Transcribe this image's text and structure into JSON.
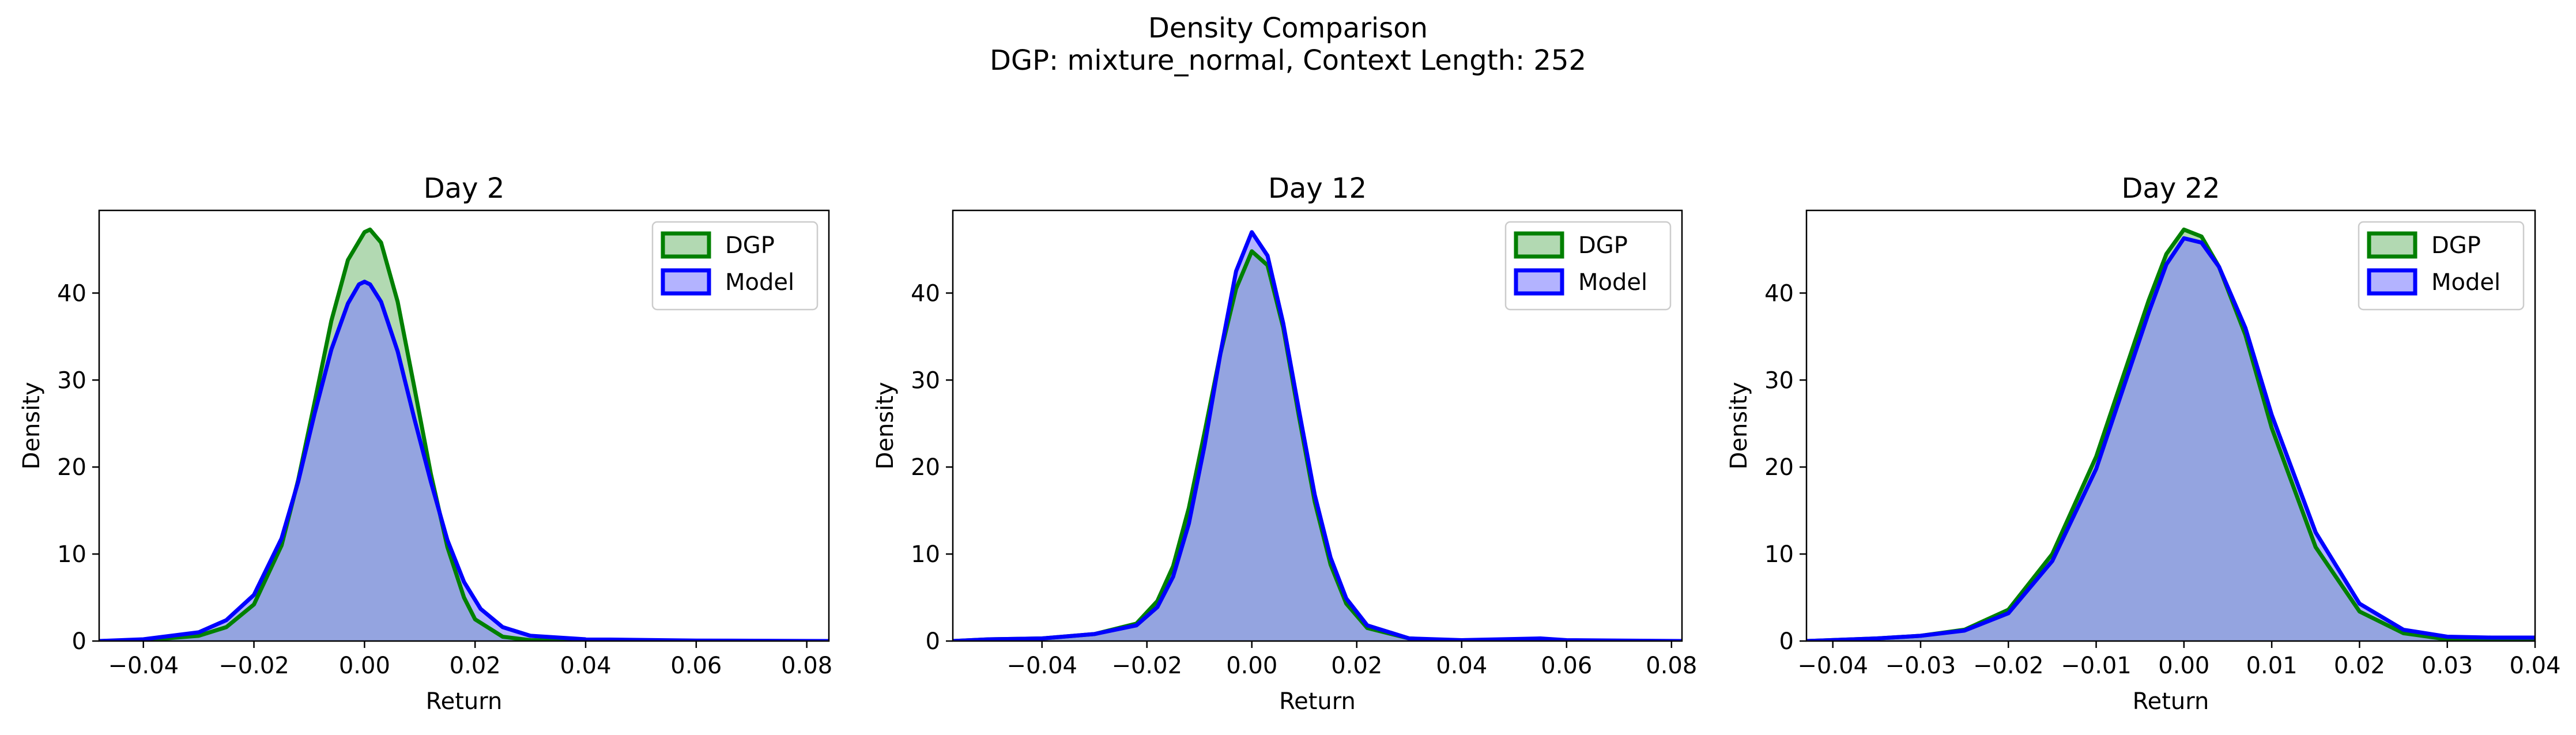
{
  "figure": {
    "title": "Density Comparison",
    "subtitle": "DGP: mixture_normal, Context Length: 252"
  },
  "colors": {
    "dgp_line": "#008000",
    "dgp_fill": "#7fbf7f",
    "model_line": "#0000ff",
    "model_fill": "#8080ff",
    "overlap_fill": "#7e97c8"
  },
  "chart_data": [
    {
      "type": "area",
      "title": "Day 2",
      "xlabel": "Return",
      "ylabel": "Density",
      "xlim": [
        -0.048,
        0.084
      ],
      "ylim": [
        0,
        49.5
      ],
      "xticks": [
        -0.04,
        -0.02,
        0.0,
        0.02,
        0.04,
        0.06,
        0.08
      ],
      "xtick_labels": [
        "−0.04",
        "−0.02",
        "0.00",
        "0.02",
        "0.04",
        "0.06",
        "0.08"
      ],
      "yticks": [
        0,
        10,
        20,
        30,
        40
      ],
      "ytick_labels": [
        "0",
        "10",
        "20",
        "30",
        "40"
      ],
      "legend": {
        "position": "top-right",
        "entries": [
          "DGP",
          "Model"
        ]
      },
      "grid": false,
      "series": [
        {
          "name": "DGP",
          "x": [
            -0.048,
            -0.04,
            -0.03,
            -0.025,
            -0.02,
            -0.015,
            -0.012,
            -0.009,
            -0.006,
            -0.003,
            0.0,
            0.001,
            0.003,
            0.006,
            0.009,
            0.012,
            0.015,
            0.018,
            0.02,
            0.025,
            0.03,
            0.04,
            0.06,
            0.084
          ],
          "y": [
            0,
            0.1,
            0.6,
            1.6,
            4.2,
            11.0,
            18.5,
            27.5,
            36.8,
            43.8,
            47.0,
            47.3,
            45.8,
            39.0,
            29.2,
            19.2,
            10.8,
            5.0,
            2.5,
            0.5,
            0.1,
            0,
            0,
            0
          ]
        },
        {
          "name": "Model",
          "x": [
            -0.048,
            -0.04,
            -0.03,
            -0.025,
            -0.02,
            -0.015,
            -0.012,
            -0.009,
            -0.006,
            -0.003,
            -0.001,
            0.0,
            0.001,
            0.003,
            0.006,
            0.009,
            0.012,
            0.015,
            0.018,
            0.021,
            0.025,
            0.03,
            0.04,
            0.06,
            0.084
          ],
          "y": [
            0,
            0.2,
            1.0,
            2.4,
            5.3,
            11.8,
            18.3,
            26.2,
            33.5,
            38.8,
            41.0,
            41.3,
            41.0,
            39.0,
            33.3,
            25.6,
            18.3,
            11.6,
            6.8,
            3.7,
            1.6,
            0.6,
            0.2,
            0.05,
            0
          ]
        }
      ]
    },
    {
      "type": "area",
      "title": "Day 12",
      "xlabel": "Return",
      "ylabel": "Density",
      "xlim": [
        -0.057,
        0.082
      ],
      "ylim": [
        0,
        49.5
      ],
      "xticks": [
        -0.04,
        -0.02,
        0.0,
        0.02,
        0.04,
        0.06,
        0.08
      ],
      "xtick_labels": [
        "−0.04",
        "−0.02",
        "0.00",
        "0.02",
        "0.04",
        "0.06",
        "0.08"
      ],
      "yticks": [
        0,
        10,
        20,
        30,
        40
      ],
      "ytick_labels": [
        "0",
        "10",
        "20",
        "30",
        "40"
      ],
      "legend": {
        "position": "top-right",
        "entries": [
          "DGP",
          "Model"
        ]
      },
      "grid": false,
      "series": [
        {
          "name": "DGP",
          "x": [
            -0.057,
            -0.05,
            -0.04,
            -0.03,
            -0.022,
            -0.018,
            -0.015,
            -0.012,
            -0.009,
            -0.006,
            -0.003,
            0.0,
            0.003,
            0.006,
            0.009,
            0.012,
            0.015,
            0.018,
            0.022,
            0.03,
            0.04,
            0.06,
            0.082
          ],
          "y": [
            0,
            0.2,
            0.3,
            0.8,
            2.0,
            4.6,
            8.6,
            15.3,
            24.0,
            33.0,
            40.5,
            44.8,
            43.2,
            36.0,
            25.8,
            16.0,
            8.8,
            4.3,
            1.5,
            0.3,
            0,
            0,
            0
          ]
        },
        {
          "name": "Model",
          "x": [
            -0.057,
            -0.05,
            -0.04,
            -0.03,
            -0.022,
            -0.018,
            -0.015,
            -0.012,
            -0.009,
            -0.006,
            -0.003,
            0.0,
            0.003,
            0.006,
            0.009,
            0.012,
            0.015,
            0.018,
            0.022,
            0.03,
            0.04,
            0.055,
            0.06,
            0.082
          ],
          "y": [
            0,
            0.2,
            0.3,
            0.8,
            1.8,
            3.9,
            7.4,
            13.5,
            22.5,
            33.0,
            42.5,
            47.0,
            44.3,
            36.5,
            26.5,
            16.8,
            9.6,
            4.9,
            1.8,
            0.3,
            0.1,
            0.3,
            0.1,
            0
          ]
        }
      ]
    },
    {
      "type": "area",
      "title": "Day 22",
      "xlabel": "Return",
      "ylabel": "Density",
      "xlim": [
        -0.043,
        0.04
      ],
      "ylim": [
        0,
        49.5
      ],
      "xticks": [
        -0.04,
        -0.03,
        -0.02,
        -0.01,
        0.0,
        0.01,
        0.02,
        0.03,
        0.04
      ],
      "xtick_labels": [
        "−0.04",
        "−0.03",
        "−0.02",
        "−0.01",
        "0.00",
        "0.01",
        "0.02",
        "0.03",
        "0.04"
      ],
      "yticks": [
        0,
        10,
        20,
        30,
        40
      ],
      "ytick_labels": [
        "0",
        "10",
        "20",
        "30",
        "40"
      ],
      "legend": {
        "position": "top-right",
        "entries": [
          "DGP",
          "Model"
        ]
      },
      "grid": false,
      "series": [
        {
          "name": "DGP",
          "x": [
            -0.043,
            -0.035,
            -0.03,
            -0.025,
            -0.02,
            -0.015,
            -0.01,
            -0.007,
            -0.004,
            -0.002,
            0.0,
            0.002,
            0.004,
            0.007,
            0.01,
            0.015,
            0.02,
            0.025,
            0.03,
            0.035,
            0.04
          ],
          "y": [
            0,
            0.3,
            0.6,
            1.3,
            3.6,
            10.0,
            21.2,
            30.2,
            39.2,
            44.5,
            47.3,
            46.5,
            43.0,
            35.2,
            24.5,
            10.8,
            3.4,
            0.9,
            0.2,
            0.1,
            0
          ]
        },
        {
          "name": "Model",
          "x": [
            -0.043,
            -0.035,
            -0.03,
            -0.025,
            -0.02,
            -0.015,
            -0.01,
            -0.007,
            -0.004,
            -0.002,
            0.0,
            0.002,
            0.004,
            0.007,
            0.01,
            0.015,
            0.02,
            0.025,
            0.03,
            0.035,
            0.04
          ],
          "y": [
            0,
            0.3,
            0.6,
            1.2,
            3.2,
            9.2,
            19.8,
            28.8,
            37.8,
            43.3,
            46.3,
            45.8,
            43.0,
            36.0,
            26.0,
            12.5,
            4.3,
            1.3,
            0.5,
            0.4,
            0.4
          ]
        }
      ]
    }
  ]
}
